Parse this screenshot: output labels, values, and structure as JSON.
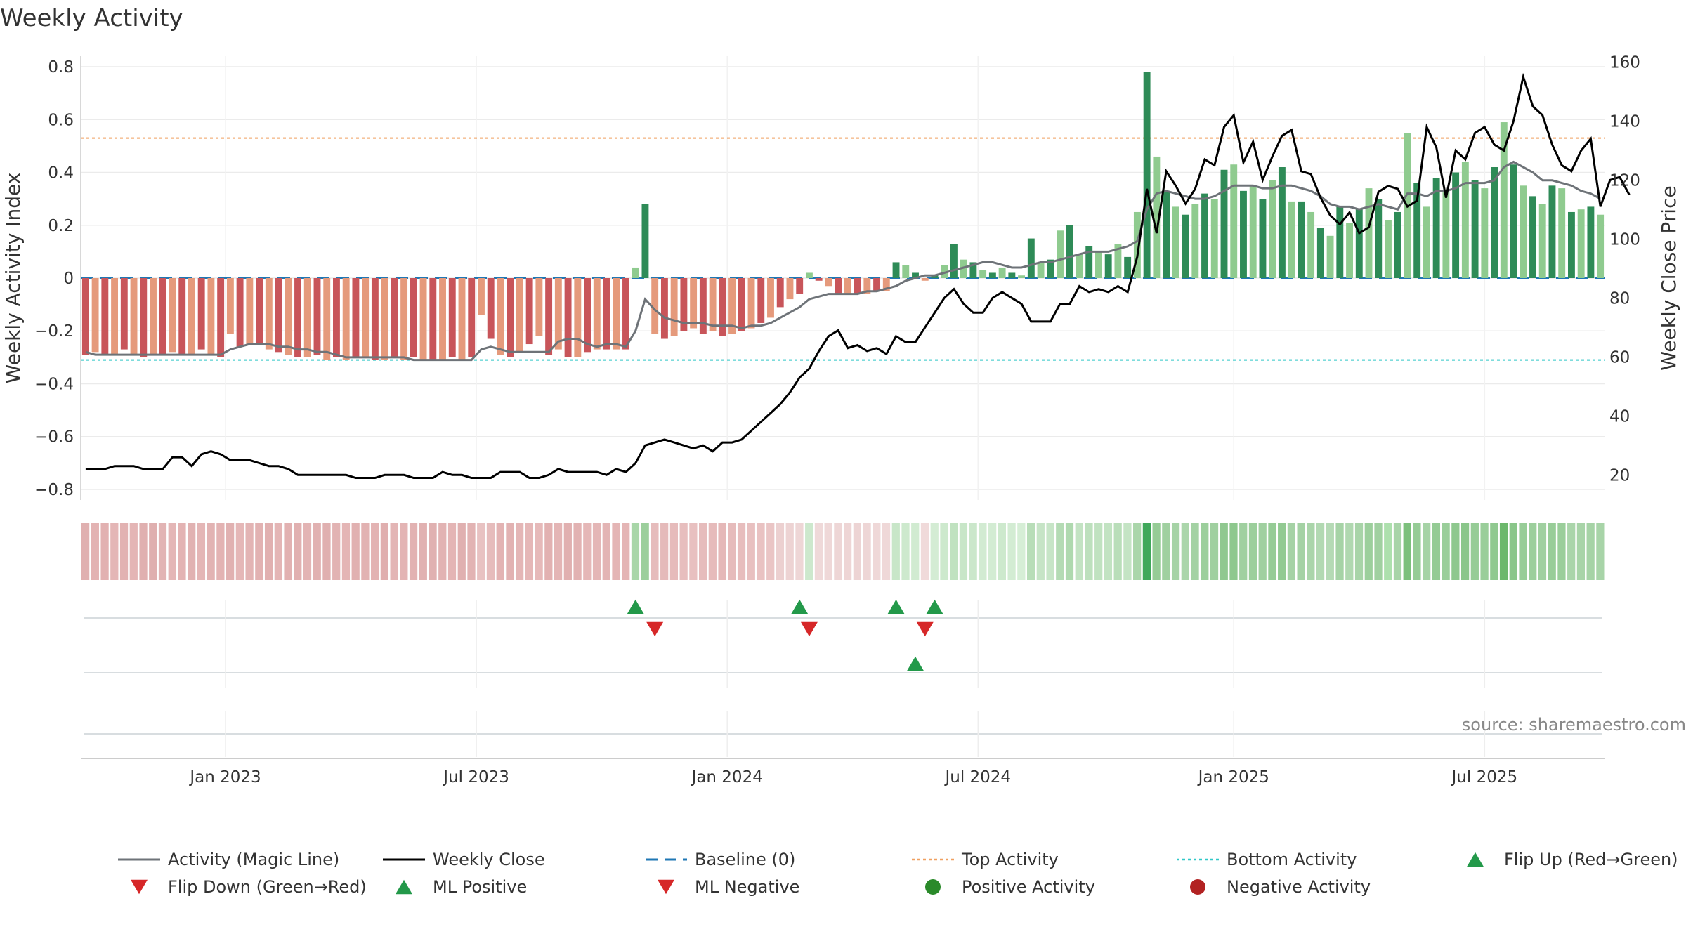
{
  "chart_data": {
    "type": "bar",
    "title": "Weekly Activity",
    "source": "source: sharemaestro.com",
    "ylabel_left": "Weekly Activity Index",
    "ylabel_right": "Weekly Close Price",
    "y_left": {
      "ticks": [
        0.8,
        0.6,
        0.4,
        0.2,
        0,
        -0.2,
        -0.4,
        -0.6,
        -0.8
      ],
      "tick_labels": [
        "0.8",
        "0.6",
        "0.4",
        "0.2",
        "0",
        "−0.2",
        "−0.4",
        "−0.6",
        "−0.8"
      ],
      "lim": [
        -0.84,
        0.84
      ]
    },
    "y_right": {
      "ticks": [
        160,
        140,
        120,
        100,
        80,
        60,
        40,
        20
      ],
      "tick_labels": [
        "160",
        "140",
        "120",
        "100",
        "80",
        "60",
        "40",
        "20"
      ],
      "lim": [
        11.5,
        162
      ]
    },
    "x_ticks": [
      {
        "label": "Jan 2023",
        "week": 15
      },
      {
        "label": "Jul 2023",
        "week": 41
      },
      {
        "label": "Jan 2024",
        "week": 67
      },
      {
        "label": "Jul 2024",
        "week": 93
      },
      {
        "label": "Jan 2025",
        "week": 119.5
      },
      {
        "label": "Jul 2025",
        "week": 145.5
      }
    ],
    "weeks_total": 158,
    "top_activity": 0.53,
    "bottom_activity": -0.31,
    "baseline": 0,
    "activity": [
      -0.29,
      -0.28,
      -0.29,
      -0.29,
      -0.27,
      -0.29,
      -0.3,
      -0.29,
      -0.29,
      -0.28,
      -0.29,
      -0.29,
      -0.27,
      -0.29,
      -0.3,
      -0.21,
      -0.26,
      -0.25,
      -0.25,
      -0.27,
      -0.28,
      -0.29,
      -0.3,
      -0.3,
      -0.29,
      -0.31,
      -0.3,
      -0.31,
      -0.3,
      -0.3,
      -0.31,
      -0.31,
      -0.3,
      -0.31,
      -0.3,
      -0.31,
      -0.31,
      -0.31,
      -0.3,
      -0.31,
      -0.3,
      -0.14,
      -0.23,
      -0.29,
      -0.3,
      -0.28,
      -0.25,
      -0.22,
      -0.29,
      -0.27,
      -0.3,
      -0.3,
      -0.28,
      -0.27,
      -0.27,
      -0.27,
      -0.27,
      0.04,
      0.28,
      -0.21,
      -0.23,
      -0.22,
      -0.2,
      -0.19,
      -0.21,
      -0.2,
      -0.22,
      -0.21,
      -0.2,
      -0.19,
      -0.17,
      -0.15,
      -0.11,
      -0.08,
      -0.06,
      0.02,
      -0.01,
      -0.03,
      -0.06,
      -0.06,
      -0.06,
      -0.06,
      -0.05,
      -0.05,
      0.06,
      0.05,
      0.02,
      -0.01,
      0.01,
      0.05,
      0.13,
      0.07,
      0.06,
      0.03,
      0.02,
      0.04,
      0.02,
      0.01,
      0.15,
      0.06,
      0.07,
      0.18,
      0.2,
      0.09,
      0.12,
      0.1,
      0.09,
      0.13,
      0.08,
      0.25,
      0.78,
      0.46,
      0.33,
      0.27,
      0.24,
      0.28,
      0.32,
      0.3,
      0.41,
      0.43,
      0.33,
      0.35,
      0.3,
      0.37,
      0.42,
      0.29,
      0.29,
      0.25,
      0.19,
      0.16,
      0.27,
      0.21,
      0.26,
      0.34,
      0.3,
      0.22,
      0.25,
      0.55,
      0.36,
      0.27,
      0.38,
      0.33,
      0.4,
      0.44,
      0.37,
      0.34,
      0.42,
      0.59,
      0.43,
      0.35,
      0.31,
      0.28,
      0.35,
      0.34,
      0.25,
      0.26,
      0.27,
      0.24
    ],
    "magic_line": [
      -0.28,
      -0.29,
      -0.29,
      -0.29,
      -0.29,
      -0.29,
      -0.29,
      -0.29,
      -0.29,
      -0.29,
      -0.29,
      -0.29,
      -0.29,
      -0.29,
      -0.29,
      -0.27,
      -0.26,
      -0.25,
      -0.25,
      -0.25,
      -0.26,
      -0.26,
      -0.27,
      -0.27,
      -0.28,
      -0.28,
      -0.29,
      -0.3,
      -0.3,
      -0.3,
      -0.3,
      -0.3,
      -0.3,
      -0.3,
      -0.31,
      -0.31,
      -0.31,
      -0.31,
      -0.31,
      -0.31,
      -0.31,
      -0.27,
      -0.26,
      -0.27,
      -0.28,
      -0.28,
      -0.28,
      -0.28,
      -0.28,
      -0.24,
      -0.23,
      -0.23,
      -0.25,
      -0.26,
      -0.25,
      -0.25,
      -0.26,
      -0.2,
      -0.08,
      -0.12,
      -0.15,
      -0.16,
      -0.17,
      -0.17,
      -0.17,
      -0.18,
      -0.18,
      -0.18,
      -0.19,
      -0.18,
      -0.18,
      -0.17,
      -0.15,
      -0.13,
      -0.11,
      -0.08,
      -0.07,
      -0.06,
      -0.06,
      -0.06,
      -0.06,
      -0.05,
      -0.05,
      -0.04,
      -0.03,
      -0.01,
      0,
      0.01,
      0.01,
      0.02,
      0.03,
      0.04,
      0.05,
      0.06,
      0.06,
      0.05,
      0.04,
      0.04,
      0.05,
      0.06,
      0.06,
      0.07,
      0.08,
      0.09,
      0.1,
      0.1,
      0.1,
      0.11,
      0.12,
      0.14,
      0.26,
      0.32,
      0.33,
      0.32,
      0.31,
      0.3,
      0.3,
      0.31,
      0.33,
      0.35,
      0.35,
      0.35,
      0.34,
      0.34,
      0.35,
      0.35,
      0.34,
      0.33,
      0.31,
      0.28,
      0.27,
      0.27,
      0.26,
      0.27,
      0.28,
      0.27,
      0.26,
      0.32,
      0.32,
      0.31,
      0.33,
      0.33,
      0.34,
      0.36,
      0.36,
      0.36,
      0.37,
      0.42,
      0.44,
      0.42,
      0.4,
      0.37,
      0.37,
      0.36,
      0.35,
      0.33,
      0.32,
      0.3
    ],
    "weekly_close": [
      22,
      22,
      22,
      23,
      23,
      23,
      22,
      22,
      22,
      26,
      26,
      23,
      27,
      28,
      27,
      25,
      25,
      25,
      24,
      23,
      23,
      22,
      20,
      20,
      20,
      20,
      20,
      20,
      19,
      19,
      19,
      20,
      20,
      20,
      19,
      19,
      19,
      21,
      20,
      20,
      19,
      19,
      19,
      21,
      21,
      21,
      19,
      19,
      20,
      22,
      21,
      21,
      21,
      21,
      20,
      22,
      21,
      24,
      30,
      31,
      32,
      31,
      30,
      29,
      30,
      28,
      31,
      31,
      32,
      35,
      38,
      41,
      44,
      48,
      53,
      56,
      62,
      67,
      69,
      63,
      64,
      62,
      63,
      61,
      67,
      65,
      65,
      70,
      75,
      80,
      83,
      78,
      75,
      75,
      80,
      82,
      80,
      78,
      72,
      72,
      72,
      78,
      78,
      84,
      82,
      83,
      82,
      84,
      82,
      94,
      117,
      102,
      123,
      118,
      112,
      117,
      127,
      125,
      138,
      142,
      126,
      133,
      120,
      128,
      135,
      137,
      123,
      122,
      114,
      108,
      105,
      109,
      102,
      104,
      116,
      118,
      117,
      111,
      113,
      138,
      131,
      114,
      130,
      127,
      136,
      138,
      132,
      130,
      140,
      155,
      145,
      142,
      132,
      125,
      123,
      130,
      134,
      111,
      120,
      121,
      115
    ],
    "top_strip_colors": [
      "#e0b0b0",
      "#e3b3b3",
      "#e2b1b1",
      "#e4b6b6",
      "#e2b2b2",
      "#e4b5b5",
      "#e0b0b0",
      "#dfafaf",
      "#e2b4b4",
      "#e4b6b6",
      "#e3b3b3",
      "#e1b2b2",
      "#e4b6b6",
      "#e2b3b3",
      "#e3b3b3",
      "#e1b1b1",
      "#e5b7b7",
      "#e3b4b4",
      "#e2b2b2",
      "#e1b0b0",
      "#e4b5b5",
      "#e2b1b1",
      "#e1b0b0",
      "#e3b4b4",
      "#e1b1b1",
      "#e0b0b0",
      "#e2b3b3",
      "#e4b5b5",
      "#e1b1b1",
      "#e2b2b2",
      "#e3b3b3",
      "#e0afaf",
      "#e3b5b5",
      "#e3b4b4",
      "#e2b2b2",
      "#e1b1b1",
      "#e0b1b1",
      "#e2b3b3",
      "#e4b5b5",
      "#e0b0b0",
      "#e2b3b3",
      "#e8c2c2",
      "#e6bcbc",
      "#e3b3b3",
      "#e2b2b2",
      "#e4b6b6",
      "#e5b7b7",
      "#e6b9b9",
      "#e2b1b1",
      "#e4b5b5",
      "#e1b0b0",
      "#e2b2b2",
      "#e5b7b7",
      "#e4b6b6",
      "#e3b4b4",
      "#e4b5b5",
      "#e4b5b5",
      "#a8d6a8",
      "#9ccf9c",
      "#e6bcbc",
      "#e5baba",
      "#e6bbbb",
      "#e7bebe",
      "#e8c0c0",
      "#e6bcbc",
      "#e6bbbb",
      "#e5b8b8",
      "#e6bbbb",
      "#e7bdbd",
      "#e8c0c0",
      "#e9c2c2",
      "#eac5c5",
      "#ecd0d0",
      "#edd3d3",
      "#eed6d6",
      "#cde8cd",
      "#efd9d9",
      "#efd8d8",
      "#eed6d6",
      "#eed5d5",
      "#edd4d4",
      "#eed6d6",
      "#efd8d8",
      "#efd8d8",
      "#c8e6c8",
      "#cde9cd",
      "#d1ebd1",
      "#f0dada",
      "#d4ecd4",
      "#cde9cd",
      "#c0e2c0",
      "#c8e6c8",
      "#cbe7cb",
      "#d2ebd2",
      "#d3ecd3",
      "#cde9cd",
      "#d3ecd3",
      "#d6eed6",
      "#b8ddb8",
      "#c6e4c6",
      "#c7e5c7",
      "#b4dbb4",
      "#afd9af",
      "#c3e3c3",
      "#bde0bd",
      "#c0e2c0",
      "#c2e3c2",
      "#b9deb9",
      "#c4e4c4",
      "#aad6aa",
      "#3fa85a",
      "#96cc96",
      "#a0d0a0",
      "#a6d3a6",
      "#abd6ab",
      "#a4d2a4",
      "#9ccf9c",
      "#a0d0a0",
      "#90c890",
      "#8ec88e",
      "#a0d0a0",
      "#9ccf9c",
      "#a0d0a0",
      "#96cc96",
      "#92ca92",
      "#a5d2a5",
      "#a4d2a4",
      "#aad5aa",
      "#b2d9b2",
      "#b5dab5",
      "#a6d3a6",
      "#b0d8b0",
      "#a8d4a8",
      "#9ccf9c",
      "#a0d0a0",
      "#ade0ad",
      "#a8d4a8",
      "#7cc07c",
      "#96cc96",
      "#a6d3a6",
      "#94cb94",
      "#9ace9a",
      "#8ec88e",
      "#8ac68a",
      "#96cc96",
      "#9ace9a",
      "#90c990",
      "#6cb86c",
      "#8ac68a",
      "#98cd98",
      "#9ccf9c",
      "#a0d0a0",
      "#98cd98",
      "#9ace9a",
      "#aad5aa",
      "#a8d4a8",
      "#a6d3a6",
      "#a8d4a8"
    ],
    "markers": [
      {
        "row": 0,
        "type": "Flip Up (Red→Green)",
        "weeks": [
          57,
          74,
          84,
          88
        ]
      },
      {
        "row": 0,
        "type": "Flip Down (Green→Red)",
        "weeks": [
          59,
          75,
          87
        ]
      },
      {
        "row": 1,
        "type": "ML Positive",
        "weeks": [
          86
        ]
      },
      {
        "row": 1,
        "type": "ML Negative",
        "weeks": []
      },
      {
        "row": 2,
        "type": "Positive Activity",
        "weeks": []
      },
      {
        "row": 2,
        "type": "Negative Activity",
        "weeks": []
      }
    ],
    "legend": [
      {
        "label": "Activity (Magic Line)",
        "kind": "line",
        "color": "#6e7378"
      },
      {
        "label": "Weekly Close",
        "kind": "line",
        "color": "#000000"
      },
      {
        "label": "Baseline (0)",
        "kind": "dash",
        "color": "#1f77b4"
      },
      {
        "label": "Top Activity",
        "kind": "dot",
        "color": "#f0a060"
      },
      {
        "label": "Bottom Activity",
        "kind": "dot",
        "color": "#30c8c8"
      },
      {
        "label": "Flip Up (Red→Green)",
        "kind": "tri-up",
        "color": "#23994a"
      },
      {
        "label": "Flip Down (Green→Red)",
        "kind": "tri-down",
        "color": "#d62728"
      },
      {
        "label": "ML Positive",
        "kind": "tri-up",
        "color": "#23994a"
      },
      {
        "label": "ML Negative",
        "kind": "tri-down",
        "color": "#d62728"
      },
      {
        "label": "Positive Activity",
        "kind": "circle",
        "color": "#2a8a2a"
      },
      {
        "label": "Negative Activity",
        "kind": "circle",
        "color": "#b22222"
      }
    ],
    "colors": {
      "pos_strong": "#2e8b57",
      "pos_weak": "#8fcb8f",
      "neg_strong": "#c8555a",
      "neg_weak": "#e59a7c",
      "magic_line": "#6e7378",
      "close": "#000000",
      "baseline": "#1f77b4",
      "top": "#f0a060",
      "bottom": "#30c8c8",
      "flip_up": "#23994a",
      "flip_down": "#d62728"
    }
  }
}
